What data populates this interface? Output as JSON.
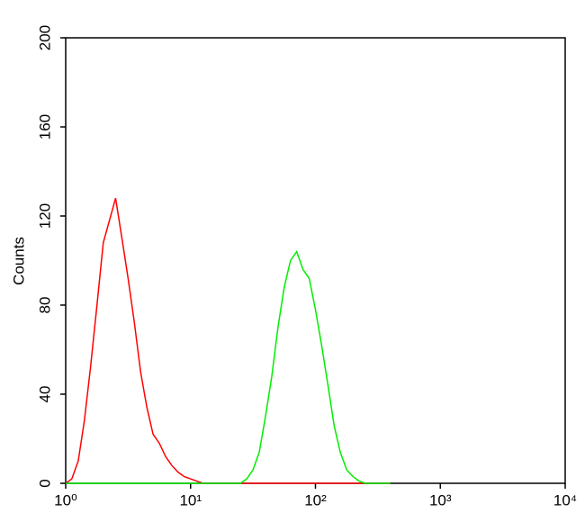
{
  "chart_data": {
    "type": "line",
    "y_label": "Counts",
    "xscale": "log",
    "x": [
      1,
      1.12,
      1.26,
      1.41,
      1.58,
      1.78,
      2.0,
      2.24,
      2.51,
      2.82,
      3.16,
      3.55,
      3.98,
      4.47,
      5.01,
      5.62,
      6.31,
      7.08,
      7.94,
      8.91,
      10,
      11.2,
      12.6,
      14.1,
      15.8,
      17.8,
      20.0,
      22.4,
      25.1,
      28.2,
      31.6,
      35.5,
      39.8,
      44.7,
      50.1,
      56.2,
      63.1,
      70.8,
      79.4,
      89.1,
      100,
      112,
      126,
      141,
      158,
      178,
      200,
      224,
      251,
      282,
      316,
      355,
      398
    ],
    "series": [
      {
        "color": "#ff0000",
        "values": [
          0,
          2,
          10,
          28,
          52,
          80,
          108,
          118,
          128,
          110,
          92,
          72,
          50,
          34,
          22,
          18,
          12,
          8,
          5,
          3,
          2,
          1,
          0,
          0,
          0,
          0,
          0,
          0,
          0,
          0,
          0,
          0,
          0,
          0,
          0,
          0,
          0,
          0,
          0,
          0,
          0,
          0,
          0,
          0,
          0,
          0,
          0,
          0,
          0,
          0,
          0,
          0,
          0
        ]
      },
      {
        "color": "#00ee00",
        "values": [
          0,
          0,
          0,
          0,
          0,
          0,
          0,
          0,
          0,
          0,
          0,
          0,
          0,
          0,
          0,
          0,
          0,
          0,
          0,
          0,
          0,
          0,
          0,
          0,
          0,
          0,
          0,
          0,
          0,
          2,
          6,
          14,
          30,
          48,
          70,
          88,
          100,
          104,
          96,
          92,
          78,
          62,
          44,
          26,
          14,
          6,
          3,
          1,
          0,
          0,
          0,
          0,
          0
        ]
      }
    ],
    "xlim": [
      1,
      10000
    ],
    "xticks": [
      {
        "value": 1,
        "label": "10⁰"
      },
      {
        "value": 10,
        "label": "10¹"
      },
      {
        "value": 100,
        "label": "10²"
      },
      {
        "value": 1000,
        "label": "10³"
      },
      {
        "value": 10000,
        "label": "10⁴"
      }
    ],
    "ylim": [
      0,
      200
    ],
    "yticks": [
      0,
      40,
      80,
      120,
      160,
      200
    ]
  }
}
